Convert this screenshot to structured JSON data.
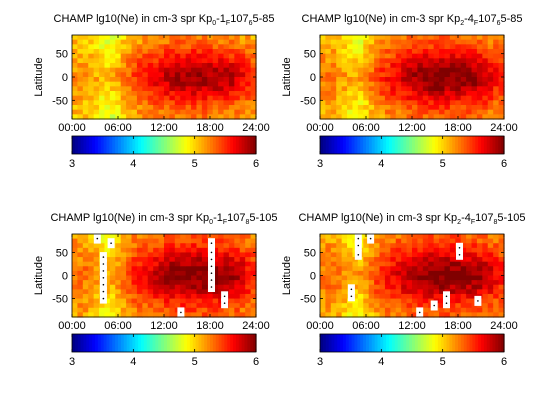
{
  "chart_data": [
    {
      "type": "heatmap",
      "title": {
        "prefix": "CHAMP lg10(Ne) in cm-3 spr Kp",
        "kp_sub": "0",
        "kp_mid": "-1",
        "f_sub": "F",
        "f_mid": "107",
        "f_sub2": "6",
        "f_tail": "5-85"
      },
      "xlabel": "",
      "ylabel": "Latitude",
      "xticks": [
        "00:00",
        "06:00",
        "12:00",
        "18:00",
        "24:00"
      ],
      "yticks": [
        "-50",
        "0",
        "50"
      ],
      "xlim_hours": [
        0,
        24
      ],
      "ylim_deg": [
        -90,
        90
      ],
      "colorbar": {
        "min": 3,
        "max": 6,
        "ticks": [
          "3",
          "4",
          "5",
          "6"
        ]
      },
      "peak_value": 5.9,
      "background_value": 5.2,
      "gap_cells": []
    },
    {
      "type": "heatmap",
      "title": {
        "prefix": "CHAMP lg10(Ne) in cm-3 spr Kp",
        "kp_sub": "2",
        "kp_mid": "-4",
        "f_sub": "F",
        "f_mid": "107",
        "f_sub2": "6",
        "f_tail": "5-85"
      },
      "xlabel": "",
      "ylabel": "Latitude",
      "xticks": [
        "00:00",
        "06:00",
        "12:00",
        "18:00",
        "24:00"
      ],
      "yticks": [
        "-50",
        "0",
        "50"
      ],
      "xlim_hours": [
        0,
        24
      ],
      "ylim_deg": [
        -90,
        90
      ],
      "colorbar": {
        "min": 3,
        "max": 6,
        "ticks": [
          "3",
          "4",
          "5",
          "6"
        ]
      },
      "peak_value": 6.0,
      "background_value": 5.25,
      "gap_cells": []
    },
    {
      "type": "heatmap",
      "title": {
        "prefix": "CHAMP lg10(Ne) in cm-3 spr Kp",
        "kp_sub": "0",
        "kp_mid": "-1",
        "f_sub": "F",
        "f_mid": "107",
        "f_sub2": "8",
        "f_tail": "5-105"
      },
      "xlabel": "",
      "ylabel": "Latitude",
      "xticks": [
        "00:00",
        "06:00",
        "12:00",
        "18:00",
        "24:00"
      ],
      "yticks": [
        "-50",
        "0",
        "50"
      ],
      "xlim_hours": [
        0,
        24
      ],
      "ylim_deg": [
        -90,
        90
      ],
      "colorbar": {
        "min": 3,
        "max": 6,
        "ticks": [
          "3",
          "4",
          "5",
          "6"
        ]
      },
      "peak_value": 6.0,
      "background_value": 5.3,
      "gap_cells": [
        [
          3.3,
          80
        ],
        [
          5.1,
          70
        ],
        [
          4.1,
          40
        ],
        [
          4.1,
          25
        ],
        [
          4.1,
          10
        ],
        [
          4.1,
          -5
        ],
        [
          4.1,
          -20
        ],
        [
          4.1,
          -35
        ],
        [
          4.1,
          -50
        ],
        [
          14.2,
          -80
        ],
        [
          18.2,
          70
        ],
        [
          18.2,
          50
        ],
        [
          18.2,
          35
        ],
        [
          18.2,
          20
        ],
        [
          18.2,
          5
        ],
        [
          18.2,
          -10
        ],
        [
          18.2,
          -25
        ],
        [
          19.9,
          -45
        ],
        [
          19.9,
          -60
        ]
      ]
    },
    {
      "type": "heatmap",
      "title": {
        "prefix": "CHAMP lg10(Ne) in cm-3 spr Kp",
        "kp_sub": "2",
        "kp_mid": "-4",
        "f_sub": "F",
        "f_mid": "107",
        "f_sub2": "8",
        "f_tail": "5-105"
      },
      "xlabel": "",
      "ylabel": "Latitude",
      "xticks": [
        "00:00",
        "06:00",
        "12:00",
        "18:00",
        "24:00"
      ],
      "yticks": [
        "-50",
        "0",
        "50"
      ],
      "xlim_hours": [
        0,
        24
      ],
      "ylim_deg": [
        -90,
        90
      ],
      "colorbar": {
        "min": 3,
        "max": 6,
        "ticks": [
          "3",
          "4",
          "5",
          "6"
        ]
      },
      "peak_value": 6.0,
      "background_value": 5.3,
      "gap_cells": [
        [
          5.0,
          80
        ],
        [
          5.0,
          65
        ],
        [
          5.0,
          45
        ],
        [
          6.6,
          80
        ],
        [
          4.1,
          -30
        ],
        [
          4.1,
          -45
        ],
        [
          14.9,
          -65
        ],
        [
          13.0,
          -80
        ],
        [
          16.5,
          -45
        ],
        [
          16.5,
          -60
        ],
        [
          18.2,
          60
        ],
        [
          18.2,
          45
        ],
        [
          20.6,
          -55
        ]
      ]
    }
  ]
}
